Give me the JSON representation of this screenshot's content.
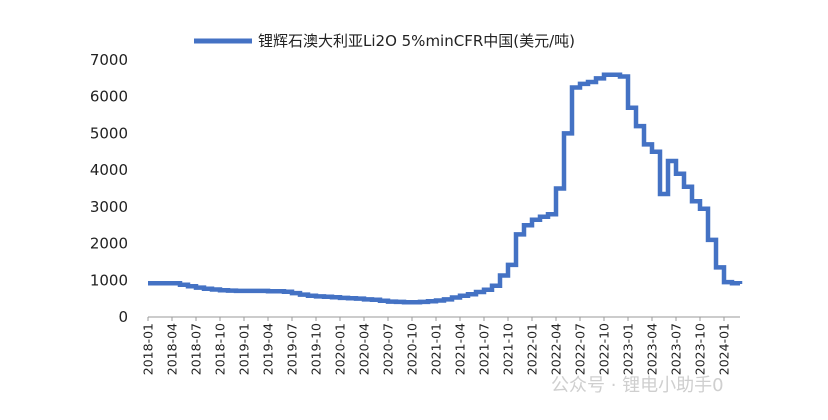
{
  "chart_data": {
    "type": "line",
    "legend": {
      "label": "锂辉石澳大利亚Li2O 5%minCFR中国(美元/吨)",
      "position": "top"
    },
    "series_color": "#4472C4",
    "ylim": [
      0,
      7000
    ],
    "y_ticks": [
      "0",
      "1000",
      "2000",
      "3000",
      "4000",
      "5000",
      "6000",
      "7000"
    ],
    "x_range": [
      "2018-01",
      "2024-03"
    ],
    "x_tick_labels": [
      "2018-01",
      "2018-04",
      "2018-07",
      "2018-10",
      "2019-01",
      "2019-04",
      "2019-07",
      "2019-10",
      "2020-01",
      "2020-04",
      "2020-07",
      "2020-10",
      "2021-01",
      "2021-04",
      "2021-07",
      "2021-10",
      "2022-01",
      "2022-04",
      "2022-07",
      "2022-10",
      "2023-01",
      "2023-04",
      "2023-07",
      "2023-10",
      "2024-01"
    ],
    "grid": false,
    "series": [
      {
        "step": true,
        "points": [
          [
            "2018-01",
            920
          ],
          [
            "2018-02",
            920
          ],
          [
            "2018-03",
            920
          ],
          [
            "2018-04",
            920
          ],
          [
            "2018-05",
            880
          ],
          [
            "2018-06",
            840
          ],
          [
            "2018-07",
            800
          ],
          [
            "2018-08",
            770
          ],
          [
            "2018-09",
            750
          ],
          [
            "2018-10",
            730
          ],
          [
            "2018-11",
            720
          ],
          [
            "2018-12",
            710
          ],
          [
            "2019-01",
            710
          ],
          [
            "2019-02",
            710
          ],
          [
            "2019-03",
            710
          ],
          [
            "2019-04",
            700
          ],
          [
            "2019-05",
            700
          ],
          [
            "2019-06",
            690
          ],
          [
            "2019-07",
            650
          ],
          [
            "2019-08",
            610
          ],
          [
            "2019-09",
            580
          ],
          [
            "2019-10",
            560
          ],
          [
            "2019-11",
            550
          ],
          [
            "2019-12",
            540
          ],
          [
            "2020-01",
            520
          ],
          [
            "2020-02",
            510
          ],
          [
            "2020-03",
            500
          ],
          [
            "2020-04",
            480
          ],
          [
            "2020-05",
            470
          ],
          [
            "2020-06",
            440
          ],
          [
            "2020-07",
            420
          ],
          [
            "2020-08",
            410
          ],
          [
            "2020-09",
            400
          ],
          [
            "2020-10",
            400
          ],
          [
            "2020-11",
            410
          ],
          [
            "2020-12",
            430
          ],
          [
            "2021-01",
            450
          ],
          [
            "2021-02",
            480
          ],
          [
            "2021-03",
            530
          ],
          [
            "2021-04",
            580
          ],
          [
            "2021-05",
            620
          ],
          [
            "2021-06",
            680
          ],
          [
            "2021-07",
            740
          ],
          [
            "2021-08",
            850
          ],
          [
            "2021-09",
            1130
          ],
          [
            "2021-10",
            1420
          ],
          [
            "2021-11",
            2250
          ],
          [
            "2021-12",
            2500
          ],
          [
            "2022-01",
            2650
          ],
          [
            "2022-02",
            2730
          ],
          [
            "2022-03",
            2800
          ],
          [
            "2022-04",
            3500
          ],
          [
            "2022-05",
            5000
          ],
          [
            "2022-06",
            6250
          ],
          [
            "2022-07",
            6350
          ],
          [
            "2022-08",
            6400
          ],
          [
            "2022-09",
            6500
          ],
          [
            "2022-10",
            6600
          ],
          [
            "2022-11",
            6600
          ],
          [
            "2022-12",
            6550
          ],
          [
            "2023-01",
            5700
          ],
          [
            "2023-02",
            5200
          ],
          [
            "2023-03",
            4700
          ],
          [
            "2023-04",
            4500
          ],
          [
            "2023-05",
            3350
          ],
          [
            "2023-06",
            4250
          ],
          [
            "2023-07",
            3900
          ],
          [
            "2023-08",
            3550
          ],
          [
            "2023-09",
            3150
          ],
          [
            "2023-10",
            2950
          ],
          [
            "2023-11",
            2100
          ],
          [
            "2023-12",
            1350
          ],
          [
            "2024-01",
            950
          ],
          [
            "2024-02",
            920
          ],
          [
            "2024-03",
            900
          ]
        ]
      }
    ]
  },
  "watermark": "公众号 · 锂电小助手0"
}
